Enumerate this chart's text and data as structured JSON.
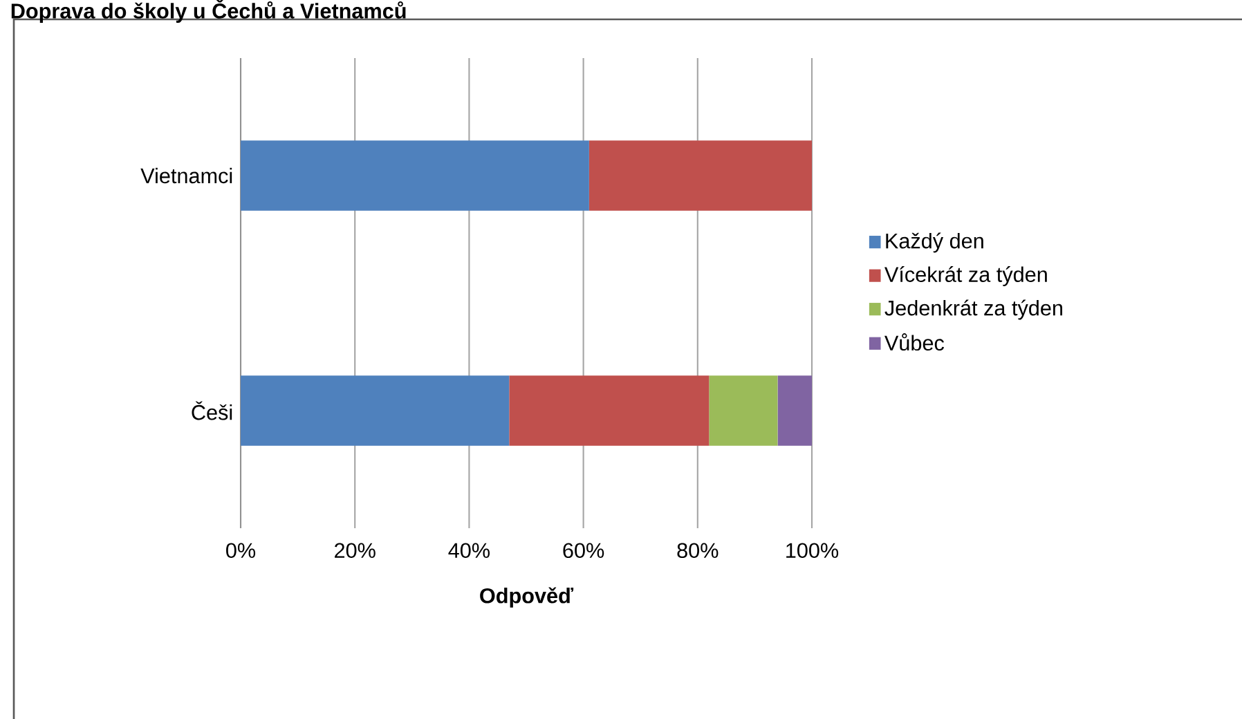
{
  "chart_data": {
    "type": "bar",
    "orientation": "horizontal",
    "stacked": true,
    "title": "Doprava do školy u Čechů a Vietnamců",
    "xlabel": "Odpověď",
    "categories": [
      "Vietnamci",
      "Češi"
    ],
    "series": [
      {
        "name": "Každý den",
        "color": "#4f81bd",
        "values": [
          61,
          47
        ]
      },
      {
        "name": "Vícekrát za týden",
        "color": "#c0504d",
        "values": [
          39,
          35
        ]
      },
      {
        "name": "Jedenkrát za týden",
        "color": "#9bbb59",
        "values": [
          0,
          12
        ]
      },
      {
        "name": "Vůbec",
        "color": "#8064a2",
        "values": [
          0,
          6
        ]
      }
    ],
    "xlim": [
      0,
      100
    ],
    "xticks": [
      {
        "value": 0,
        "label": "0%"
      },
      {
        "value": 20,
        "label": "20%"
      },
      {
        "value": 40,
        "label": "40%"
      },
      {
        "value": 60,
        "label": "60%"
      },
      {
        "value": 80,
        "label": "80%"
      },
      {
        "value": 100,
        "label": "100%"
      }
    ],
    "grid": "x",
    "legend": "right"
  }
}
